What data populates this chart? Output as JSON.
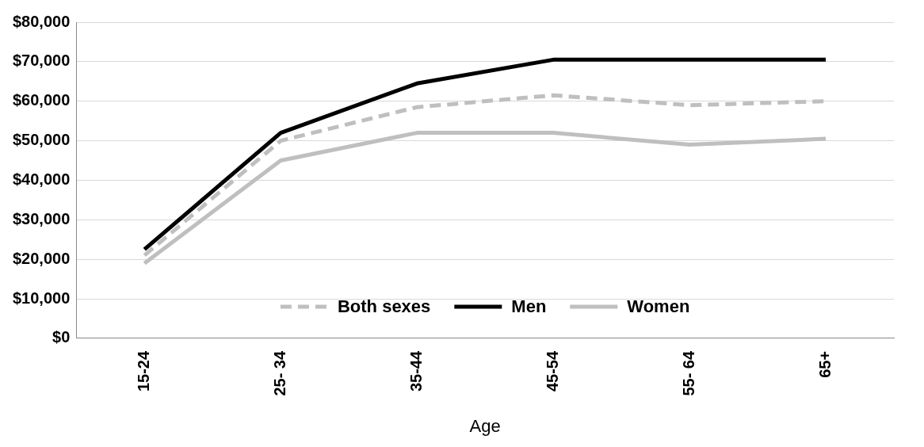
{
  "chart_data": {
    "type": "line",
    "xlabel": "Age",
    "categories": [
      "15-24",
      "25- 34",
      "35-44",
      "45-54",
      "55- 64",
      "65+"
    ],
    "series": [
      {
        "name": "Both sexes",
        "color": "#bfbfbf",
        "line_style": "dashed",
        "values": [
          21000,
          50000,
          58500,
          61500,
          59000,
          60000
        ]
      },
      {
        "name": "Men",
        "color": "#000000",
        "line_style": "solid",
        "values": [
          22500,
          52000,
          64500,
          70500,
          70500,
          70500
        ]
      },
      {
        "name": "Women",
        "color": "#bfbfbf",
        "line_style": "solid",
        "values": [
          19000,
          45000,
          52000,
          52000,
          49000,
          50500
        ]
      }
    ],
    "ylim": [
      0,
      80000
    ],
    "yticks": [
      {
        "value": 0,
        "label": "$0"
      },
      {
        "value": 10000,
        "label": "$10,000"
      },
      {
        "value": 20000,
        "label": "$20,000"
      },
      {
        "value": 30000,
        "label": "$30,000"
      },
      {
        "value": 40000,
        "label": "$40,000"
      },
      {
        "value": 50000,
        "label": "$50,000"
      },
      {
        "value": 60000,
        "label": "$60,000"
      },
      {
        "value": 70000,
        "label": "$70,000"
      },
      {
        "value": 80000,
        "label": "$80,000"
      }
    ],
    "grid": "y",
    "legend": "bottom",
    "marker": "none"
  }
}
